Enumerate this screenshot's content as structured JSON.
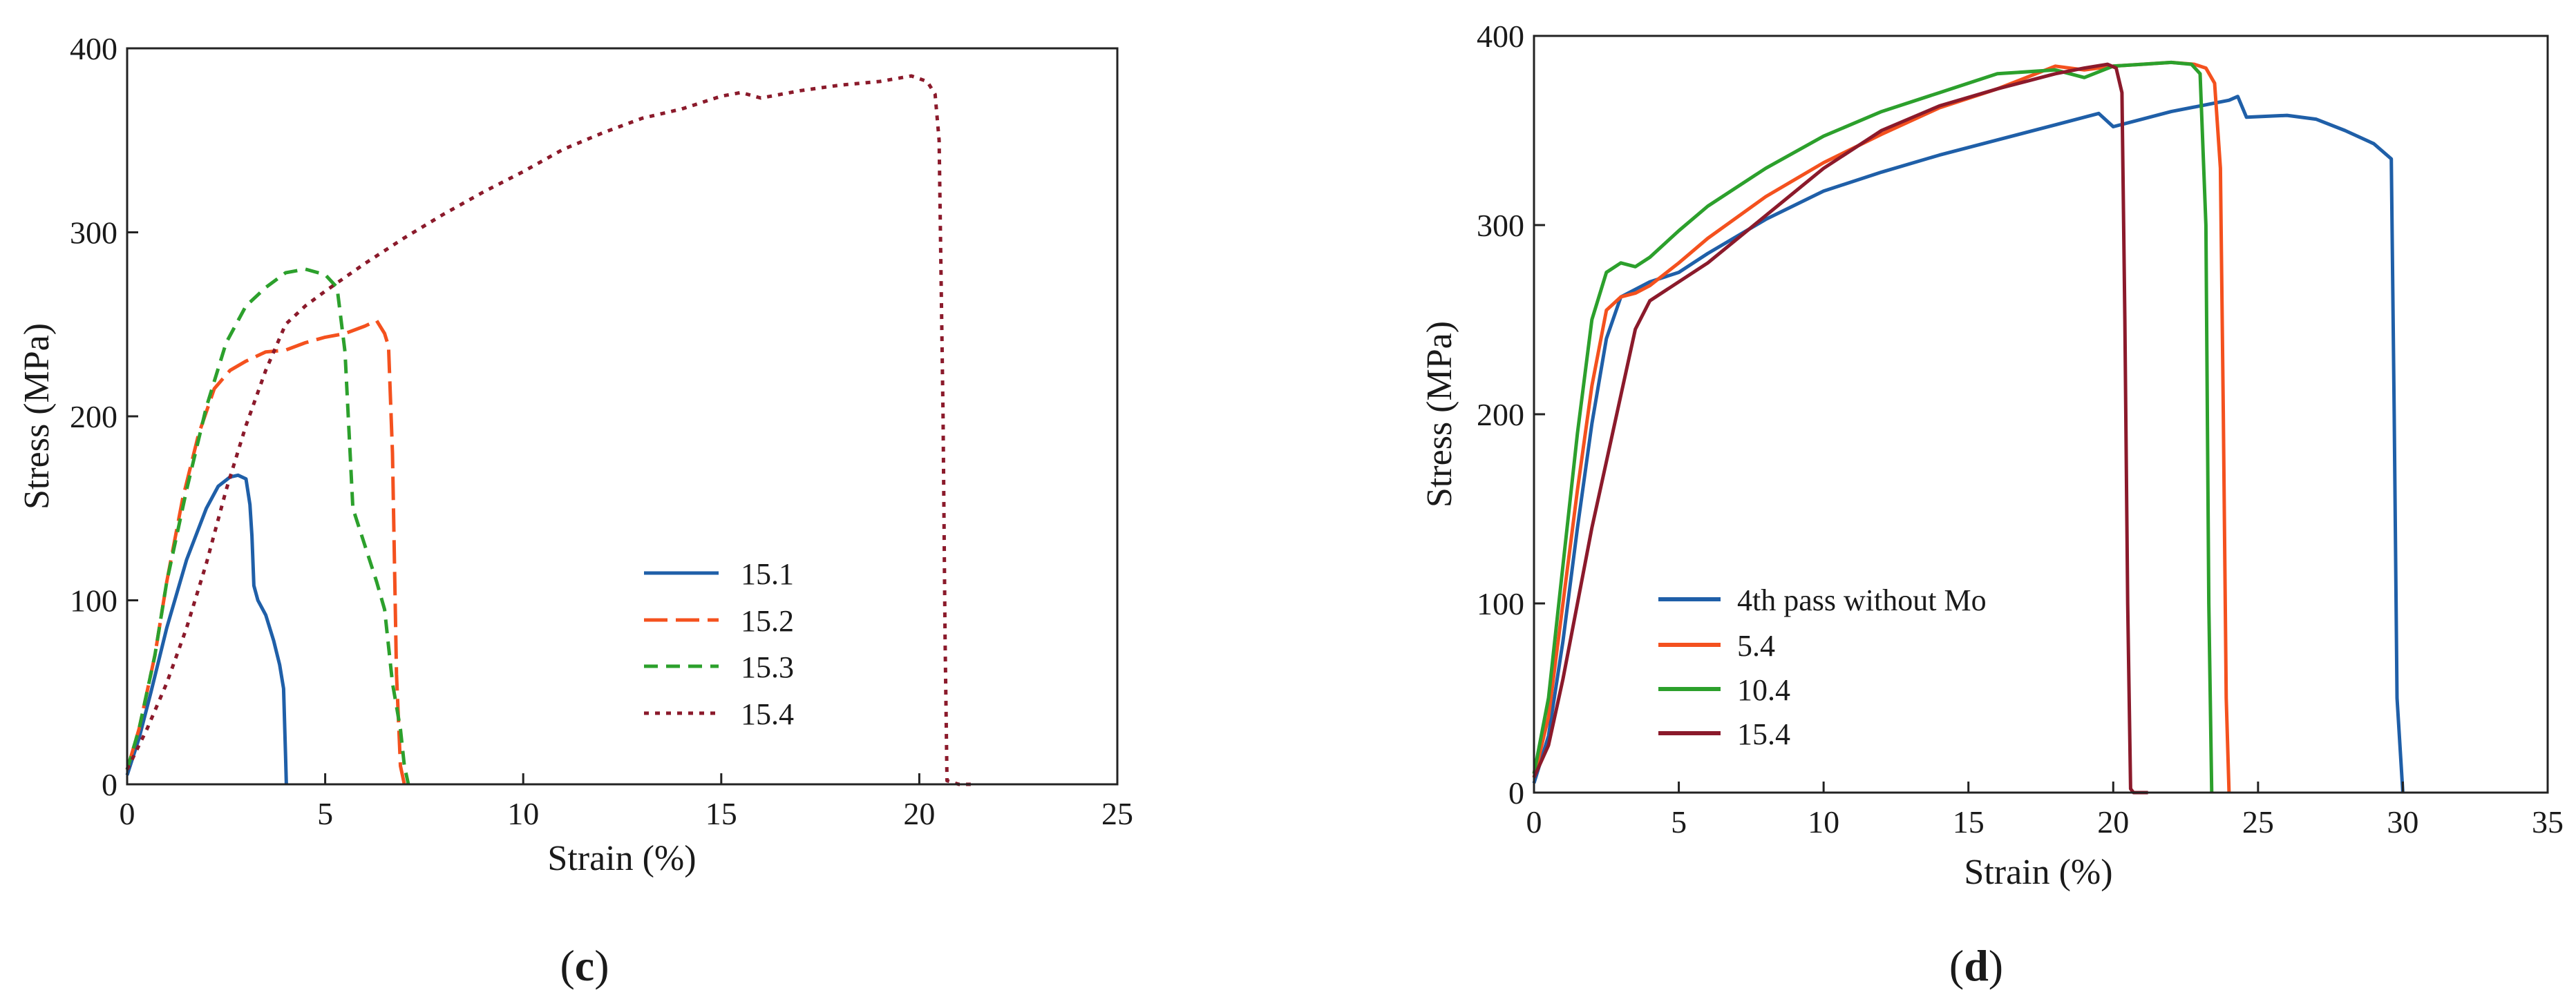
{
  "chart_data": [
    {
      "type": "line",
      "panel_label": "c",
      "xlabel": "Strain (%)",
      "ylabel": "Stress (MPa)",
      "xlim": [
        0,
        25
      ],
      "ylim": [
        0,
        400
      ],
      "xticks": [
        0,
        5,
        10,
        15,
        20,
        25
      ],
      "yticks": [
        0,
        100,
        200,
        300,
        400
      ],
      "grid": false,
      "legend_position": "center-right",
      "series": [
        {
          "name": "15.1",
          "color": "#1f5fa8",
          "dash": "solid",
          "x": [
            0,
            0.3,
            0.6,
            1.0,
            1.5,
            2.0,
            2.3,
            2.6,
            2.8,
            3.0,
            3.1,
            3.15,
            3.2,
            3.3,
            3.5,
            3.7,
            3.85,
            3.95,
            4.0,
            4.02
          ],
          "y": [
            5,
            25,
            50,
            85,
            122,
            150,
            162,
            167,
            168,
            166,
            152,
            135,
            108,
            100,
            92,
            78,
            65,
            52,
            15,
            0
          ]
        },
        {
          "name": "15.2",
          "color": "#f4511e",
          "dash": "longdash",
          "x": [
            0,
            0.3,
            0.7,
            1.0,
            1.4,
            1.8,
            2.2,
            2.6,
            3.0,
            3.5,
            4.0,
            4.5,
            5.0,
            5.5,
            6.0,
            6.3,
            6.5,
            6.6,
            6.7,
            6.75,
            6.8,
            6.9,
            7.0
          ],
          "y": [
            8,
            30,
            70,
            110,
            155,
            190,
            215,
            225,
            230,
            235,
            236,
            240,
            243,
            245,
            249,
            252,
            245,
            238,
            180,
            120,
            60,
            10,
            0
          ]
        },
        {
          "name": "15.3",
          "color": "#2ca02c",
          "dash": "dash",
          "x": [
            0,
            0.3,
            0.7,
            1.0,
            1.5,
            2.0,
            2.5,
            3.0,
            3.5,
            4.0,
            4.5,
            5.0,
            5.3,
            5.5,
            5.7,
            6.0,
            6.3,
            6.5,
            6.7,
            6.9,
            7.0,
            7.1
          ],
          "y": [
            8,
            30,
            70,
            110,
            160,
            205,
            240,
            260,
            270,
            278,
            280,
            277,
            270,
            235,
            150,
            130,
            110,
            95,
            55,
            30,
            10,
            0
          ]
        },
        {
          "name": "15.4",
          "color": "#8b1a2b",
          "dash": "dot",
          "x": [
            0,
            0.5,
            1.0,
            1.5,
            2.0,
            2.5,
            3.0,
            3.5,
            4.0,
            4.5,
            5.0,
            6.0,
            7.0,
            8.0,
            9.0,
            10.0,
            11.0,
            12.0,
            13.0,
            14.0,
            15.0,
            15.5,
            16.0,
            17.0,
            18.0,
            19.0,
            19.8,
            20.2,
            20.4,
            20.5,
            20.6,
            20.65,
            20.7,
            21.0,
            21.3
          ],
          "y": [
            8,
            30,
            55,
            85,
            120,
            160,
            195,
            225,
            250,
            260,
            268,
            283,
            297,
            310,
            322,
            333,
            345,
            354,
            362,
            367,
            374,
            376,
            373,
            377,
            380,
            382,
            385,
            382,
            375,
            350,
            200,
            80,
            2,
            0,
            0
          ]
        }
      ]
    },
    {
      "type": "line",
      "panel_label": "d",
      "xlabel": "Strain (%)",
      "ylabel": "Stress (MPa)",
      "xlim": [
        0,
        35
      ],
      "ylim": [
        0,
        400
      ],
      "xticks": [
        0,
        5,
        10,
        15,
        20,
        25,
        30,
        35
      ],
      "yticks": [
        0,
        100,
        200,
        300,
        400
      ],
      "grid": false,
      "legend_position": "bottom-left",
      "series": [
        {
          "name": "4th pass without Mo",
          "color": "#1f5fa8",
          "dash": "solid",
          "x": [
            0,
            0.5,
            1.0,
            1.5,
            2.0,
            2.5,
            3.0,
            4.0,
            5.0,
            6.0,
            8.0,
            10.0,
            12.0,
            14.0,
            16.0,
            18.0,
            19.5,
            20.0,
            21.0,
            22.0,
            23.0,
            24.0,
            24.3,
            24.6,
            26.0,
            27.0,
            28.0,
            29.0,
            29.6,
            29.7,
            29.8,
            30.0
          ],
          "y": [
            5,
            30,
            80,
            140,
            195,
            240,
            262,
            270,
            275,
            285,
            303,
            318,
            328,
            337,
            345,
            353,
            359,
            352,
            356,
            360,
            363,
            366,
            368,
            357,
            358,
            356,
            350,
            343,
            335,
            200,
            50,
            0
          ]
        },
        {
          "name": "5.4",
          "color": "#f4511e",
          "dash": "solid",
          "x": [
            0,
            0.5,
            1.0,
            1.5,
            2.0,
            2.5,
            3.0,
            3.5,
            4.0,
            5.0,
            6.0,
            8.0,
            10.0,
            12.0,
            14.0,
            16.0,
            18.0,
            19.0,
            20.0,
            21.0,
            22.0,
            22.8,
            23.2,
            23.5,
            23.7,
            23.8,
            23.9,
            24.0
          ],
          "y": [
            8,
            40,
            100,
            160,
            215,
            255,
            262,
            264,
            268,
            280,
            293,
            315,
            333,
            348,
            362,
            372,
            384,
            382,
            384,
            385,
            386,
            385,
            383,
            375,
            330,
            200,
            50,
            0
          ]
        },
        {
          "name": "10.4",
          "color": "#2ca02c",
          "dash": "solid",
          "x": [
            0,
            0.5,
            1.0,
            1.5,
            2.0,
            2.5,
            3.0,
            3.5,
            4.0,
            5.0,
            6.0,
            8.0,
            10.0,
            12.0,
            14.0,
            16.0,
            18.0,
            19.0,
            20.0,
            21.0,
            22.0,
            22.7,
            23.0,
            23.2,
            23.3,
            23.4
          ],
          "y": [
            10,
            50,
            120,
            190,
            250,
            275,
            280,
            278,
            283,
            297,
            310,
            330,
            347,
            360,
            370,
            380,
            382,
            378,
            384,
            385,
            386,
            385,
            380,
            300,
            100,
            0
          ]
        },
        {
          "name": "15.4",
          "color": "#8b1a2b",
          "dash": "solid",
          "x": [
            0,
            0.5,
            1.0,
            1.5,
            2.0,
            2.5,
            3.0,
            3.5,
            4.0,
            5.0,
            6.0,
            8.0,
            10.0,
            12.0,
            14.0,
            16.0,
            17.0,
            18.0,
            19.0,
            19.8,
            20.1,
            20.3,
            20.4,
            20.5,
            20.6,
            20.7,
            21.2
          ],
          "y": [
            8,
            25,
            60,
            100,
            140,
            175,
            210,
            245,
            260,
            270,
            280,
            305,
            330,
            350,
            363,
            372,
            376,
            380,
            383,
            385,
            383,
            370,
            250,
            100,
            2,
            0,
            0
          ]
        }
      ]
    }
  ]
}
